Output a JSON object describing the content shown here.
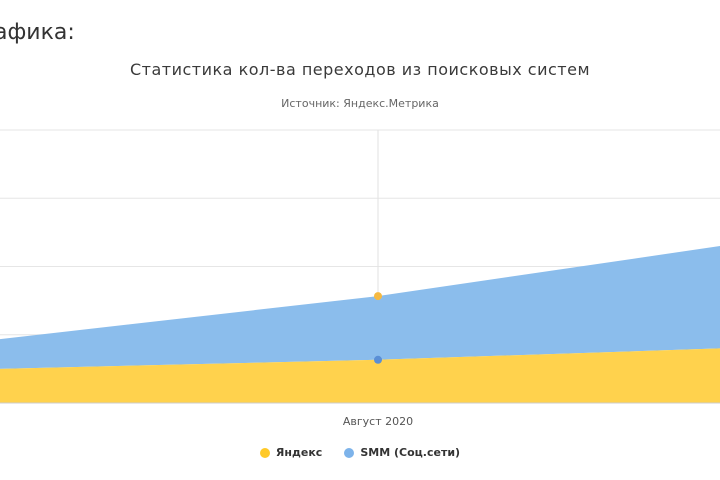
{
  "page": {
    "heading": "афика:"
  },
  "chart_data": {
    "type": "area",
    "stacked": true,
    "title": "Статистика кол-ва переходов из поисковых систем",
    "subtitle": "Источник: Яндекс.Метрика",
    "categories": [
      "",
      "Август 2020",
      ""
    ],
    "x_label_shown": "Август 2020",
    "series": [
      {
        "name": "Яндекс",
        "color": "#FFD24D",
        "values": [
          15,
          19,
          24
        ]
      },
      {
        "name": "SMM (Соц.сети)",
        "color": "#8BBDEC",
        "values": [
          13,
          28,
          45
        ]
      }
    ],
    "ylim": [
      0,
      120
    ],
    "grid": true,
    "legend_position": "bottom"
  }
}
